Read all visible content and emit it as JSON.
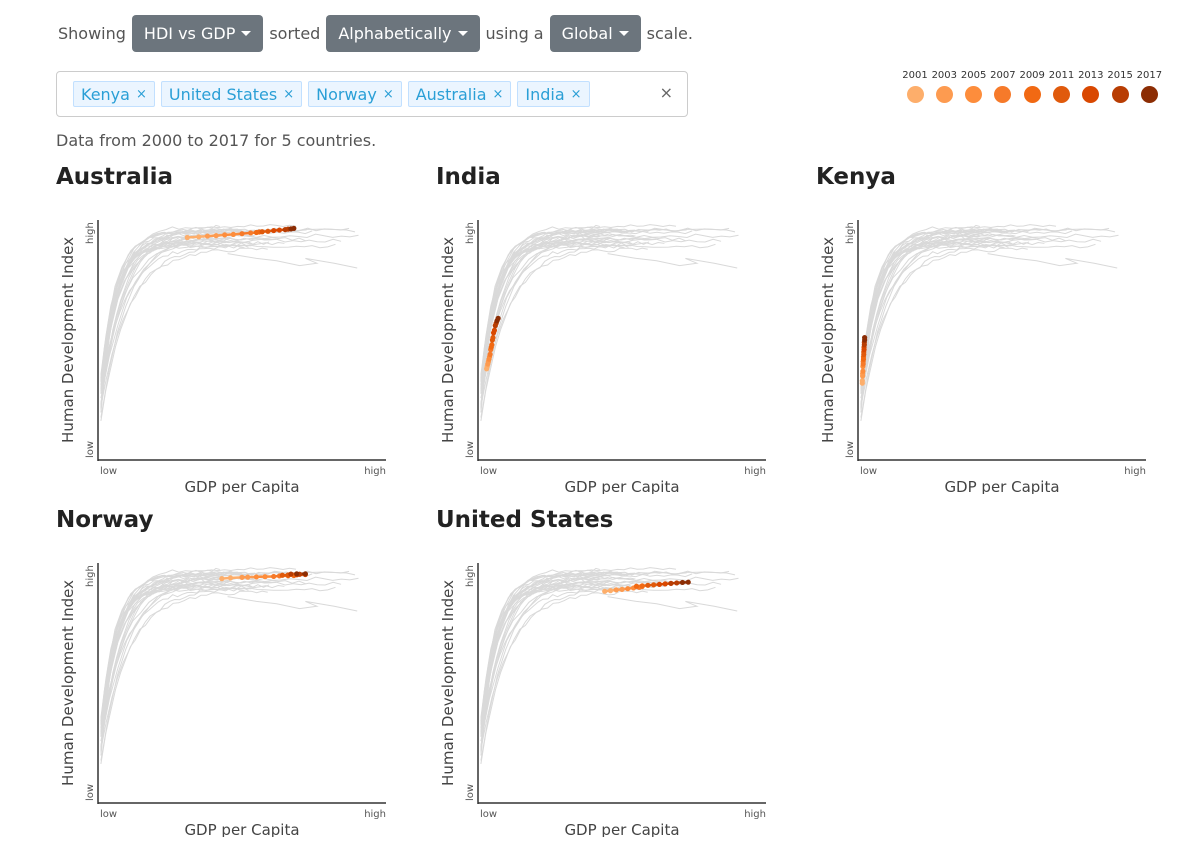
{
  "controls": {
    "showing_label": "Showing",
    "metric_dropdown": "HDI vs GDP",
    "sorted_label": "sorted",
    "sort_dropdown": "Alphabetically",
    "using_label": "using a",
    "scale_dropdown": "Global",
    "scale_label": "scale."
  },
  "tags": [
    {
      "label": "Kenya",
      "remove": "×"
    },
    {
      "label": "United States",
      "remove": "×"
    },
    {
      "label": "Norway",
      "remove": "×"
    },
    {
      "label": "Australia",
      "remove": "×"
    },
    {
      "label": "India",
      "remove": "×"
    }
  ],
  "clear_all": "×",
  "legend": [
    {
      "year": "2001",
      "color": "#fdae6b"
    },
    {
      "year": "2003",
      "color": "#fd9b50"
    },
    {
      "year": "2005",
      "color": "#fd8d3c"
    },
    {
      "year": "2007",
      "color": "#f67a2a"
    },
    {
      "year": "2009",
      "color": "#f16913"
    },
    {
      "year": "2011",
      "color": "#e05a0c"
    },
    {
      "year": "2013",
      "color": "#d94801"
    },
    {
      "year": "2015",
      "color": "#b83d03"
    },
    {
      "year": "2017",
      "color": "#8c2d04"
    }
  ],
  "subtitle": "Data from 2000 to 2017 for 5 countries.",
  "axis_labels": {
    "x": "GDP per Capita",
    "y": "Human Development Index",
    "x_low": "low",
    "x_high": "high",
    "y_low": "low",
    "y_high": "high"
  },
  "chart_data": [
    {
      "type": "line",
      "title": "Australia",
      "xlabel": "GDP per Capita",
      "ylabel": "Human Development Index",
      "xlim": [
        0,
        1
      ],
      "ylim": [
        0,
        1
      ],
      "series": [
        {
          "x": [
            0.31,
            0.35,
            0.38,
            0.41,
            0.44,
            0.47,
            0.5,
            0.53,
            0.55,
            0.56,
            0.57,
            0.59,
            0.61,
            0.63,
            0.65,
            0.66,
            0.67,
            0.68
          ],
          "y": [
            0.927,
            0.93,
            0.933,
            0.935,
            0.938,
            0.94,
            0.943,
            0.946,
            0.948,
            0.95,
            0.951,
            0.953,
            0.956,
            0.958,
            0.96,
            0.962,
            0.963,
            0.965
          ]
        }
      ]
    },
    {
      "type": "line",
      "title": "India",
      "xlabel": "GDP per Capita",
      "ylabel": "Human Development Index",
      "xlim": [
        0,
        1
      ],
      "ylim": [
        0,
        1
      ],
      "series": [
        {
          "x": [
            0.03,
            0.032,
            0.034,
            0.036,
            0.038,
            0.04,
            0.042,
            0.044,
            0.046,
            0.048,
            0.05,
            0.052,
            0.054,
            0.057,
            0.06,
            0.063,
            0.066,
            0.07
          ],
          "y": [
            0.38,
            0.39,
            0.4,
            0.41,
            0.42,
            0.43,
            0.44,
            0.46,
            0.47,
            0.48,
            0.5,
            0.51,
            0.53,
            0.54,
            0.56,
            0.57,
            0.58,
            0.59
          ]
        }
      ]
    },
    {
      "type": "line",
      "title": "Kenya",
      "xlabel": "GDP per Capita",
      "ylabel": "Human Development Index",
      "xlim": [
        0,
        1
      ],
      "ylim": [
        0,
        1
      ],
      "series": [
        {
          "x": [
            0.015,
            0.015,
            0.016,
            0.016,
            0.017,
            0.017,
            0.018,
            0.018,
            0.019,
            0.019,
            0.02,
            0.02,
            0.021,
            0.021,
            0.022,
            0.022,
            0.023,
            0.023
          ],
          "y": [
            0.32,
            0.33,
            0.35,
            0.36,
            0.37,
            0.39,
            0.4,
            0.41,
            0.42,
            0.43,
            0.44,
            0.45,
            0.46,
            0.47,
            0.48,
            0.49,
            0.5,
            0.51
          ]
        }
      ]
    },
    {
      "type": "line",
      "title": "Norway",
      "xlabel": "GDP per Capita",
      "ylabel": "Human Development Index",
      "xlim": [
        0,
        1
      ],
      "ylim": [
        0,
        1
      ],
      "series": [
        {
          "x": [
            0.43,
            0.46,
            0.5,
            0.52,
            0.55,
            0.58,
            0.61,
            0.63,
            0.66,
            0.68,
            0.64,
            0.66,
            0.69,
            0.72,
            0.7,
            0.67,
            0.69,
            0.72
          ],
          "y": [
            0.935,
            0.938,
            0.94,
            0.941,
            0.942,
            0.943,
            0.944,
            0.946,
            0.947,
            0.948,
            0.949,
            0.95,
            0.951,
            0.952,
            0.953,
            0.954,
            0.955,
            0.955
          ]
        }
      ]
    },
    {
      "type": "line",
      "title": "United States",
      "xlabel": "GDP per Capita",
      "ylabel": "Human Development Index",
      "xlim": [
        0,
        1
      ],
      "ylim": [
        0,
        1
      ],
      "series": [
        {
          "x": [
            0.44,
            0.46,
            0.48,
            0.5,
            0.52,
            0.54,
            0.56,
            0.57,
            0.55,
            0.57,
            0.59,
            0.61,
            0.63,
            0.65,
            0.67,
            0.69,
            0.71,
            0.73
          ],
          "y": [
            0.882,
            0.885,
            0.888,
            0.89,
            0.893,
            0.896,
            0.899,
            0.902,
            0.903,
            0.905,
            0.907,
            0.909,
            0.911,
            0.913,
            0.915,
            0.917,
            0.919,
            0.92
          ]
        }
      ]
    }
  ]
}
